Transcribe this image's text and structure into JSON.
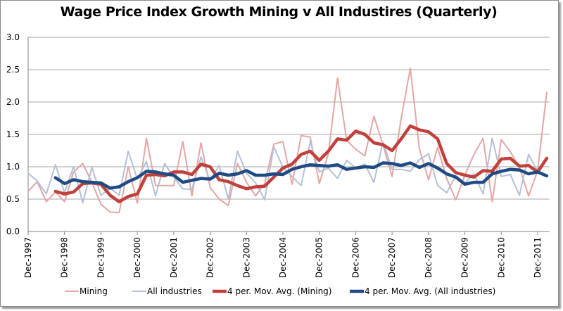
{
  "chart_data": {
    "type": "line",
    "title": "Wage Price Index Growth Mining v All Industires (Quarterly)",
    "xlabel": "",
    "ylabel": "",
    "ylim": [
      0,
      3
    ],
    "yticks": [
      "0.0",
      "0.5",
      "1.0",
      "1.5",
      "2.0",
      "2.5",
      "3.0"
    ],
    "ytick_values": [
      0,
      0.5,
      1.0,
      1.5,
      2.0,
      2.5,
      3.0
    ],
    "grid": "horizontal",
    "legend_position": "bottom",
    "x_start": "Dec-1997",
    "x_frequency": "quarterly",
    "x_count": 58,
    "xtick_labels": [
      "Dec-1997",
      "Dec-1998",
      "Dec-1999",
      "Dec-2000",
      "Dec-2001",
      "Dec-2002",
      "Dec-2003",
      "Dec-2004",
      "Dec-2005",
      "Dec-2006",
      "Dec-2007",
      "Dec-2008",
      "Dec-2009",
      "Dec-2010",
      "Dec-2011"
    ],
    "xtick_indices": [
      0,
      4,
      8,
      12,
      16,
      20,
      24,
      28,
      32,
      36,
      40,
      44,
      48,
      52,
      56
    ],
    "series": [
      {
        "name": "Mining",
        "color": "#e6a5a5",
        "start_index": 0,
        "values": [
          0.62,
          0.77,
          0.46,
          0.61,
          0.46,
          0.92,
          1.05,
          0.76,
          0.42,
          0.3,
          0.29,
          1.0,
          0.44,
          1.44,
          0.71,
          0.71,
          0.71,
          1.39,
          0.55,
          1.37,
          0.68,
          0.5,
          0.4,
          1.05,
          0.76,
          0.55,
          0.74,
          1.35,
          1.39,
          0.73,
          1.48,
          1.46,
          0.74,
          1.2,
          2.37,
          1.41,
          1.27,
          1.17,
          1.78,
          1.34,
          0.85,
          1.75,
          2.52,
          1.28,
          0.8,
          1.3,
          0.82,
          0.49,
          0.87,
          1.19,
          1.44,
          0.46,
          1.42,
          1.23,
          0.99,
          0.55,
          0.94,
          2.15
        ]
      },
      {
        "name": "All industries",
        "color": "#b4c0d6",
        "start_index": 0,
        "values": [
          0.9,
          0.78,
          0.58,
          1.03,
          0.6,
          1.0,
          0.44,
          0.99,
          0.56,
          0.67,
          0.56,
          1.24,
          0.81,
          1.08,
          0.55,
          1.05,
          0.84,
          0.66,
          0.65,
          1.15,
          0.79,
          1.02,
          0.5,
          1.24,
          0.9,
          0.75,
          0.49,
          1.31,
          0.99,
          0.85,
          0.71,
          1.39,
          0.92,
          0.98,
          0.82,
          1.1,
          0.98,
          1.04,
          0.76,
          1.38,
          0.96,
          0.96,
          0.93,
          1.11,
          1.2,
          0.71,
          0.6,
          0.86,
          0.75,
          0.89,
          0.58,
          1.44,
          0.85,
          0.88,
          0.56,
          1.19,
          0.93,
          0.85
        ]
      },
      {
        "name": "4 per. Mov. Avg. (Mining)",
        "color": "#c0403c",
        "start_index": 3,
        "values": [
          0.62,
          0.58,
          0.61,
          0.74,
          0.75,
          0.73,
          0.56,
          0.46,
          0.54,
          0.58,
          0.87,
          0.88,
          0.86,
          0.92,
          0.92,
          0.88,
          1.04,
          1.0,
          0.8,
          0.77,
          0.71,
          0.66,
          0.69,
          0.7,
          0.84,
          0.98,
          1.04,
          1.19,
          1.24,
          1.1,
          1.24,
          1.43,
          1.41,
          1.55,
          1.5,
          1.37,
          1.34,
          1.25,
          1.43,
          1.63,
          1.57,
          1.54,
          1.43,
          1.05,
          0.91,
          0.87,
          0.84,
          0.94,
          0.93,
          1.12,
          1.13,
          1.01,
          1.02,
          0.92,
          1.13
        ]
      },
      {
        "name": "4 per. Mov. Avg. (All industries)",
        "color": "#1f4a84",
        "start_index": 3,
        "values": [
          0.83,
          0.74,
          0.8,
          0.77,
          0.76,
          0.75,
          0.67,
          0.69,
          0.77,
          0.83,
          0.93,
          0.92,
          0.89,
          0.87,
          0.76,
          0.79,
          0.82,
          0.81,
          0.9,
          0.87,
          0.89,
          0.94,
          0.87,
          0.87,
          0.89,
          0.88,
          0.96,
          1.0,
          1.03,
          1.02,
          1.01,
          1.03,
          0.96,
          0.98,
          1.0,
          0.99,
          1.06,
          1.05,
          1.02,
          1.06,
          0.99,
          1.05,
          0.98,
          0.89,
          0.84,
          0.73,
          0.76,
          0.76,
          0.89,
          0.93,
          0.96,
          0.95,
          0.89,
          0.92,
          0.86
        ]
      }
    ]
  }
}
